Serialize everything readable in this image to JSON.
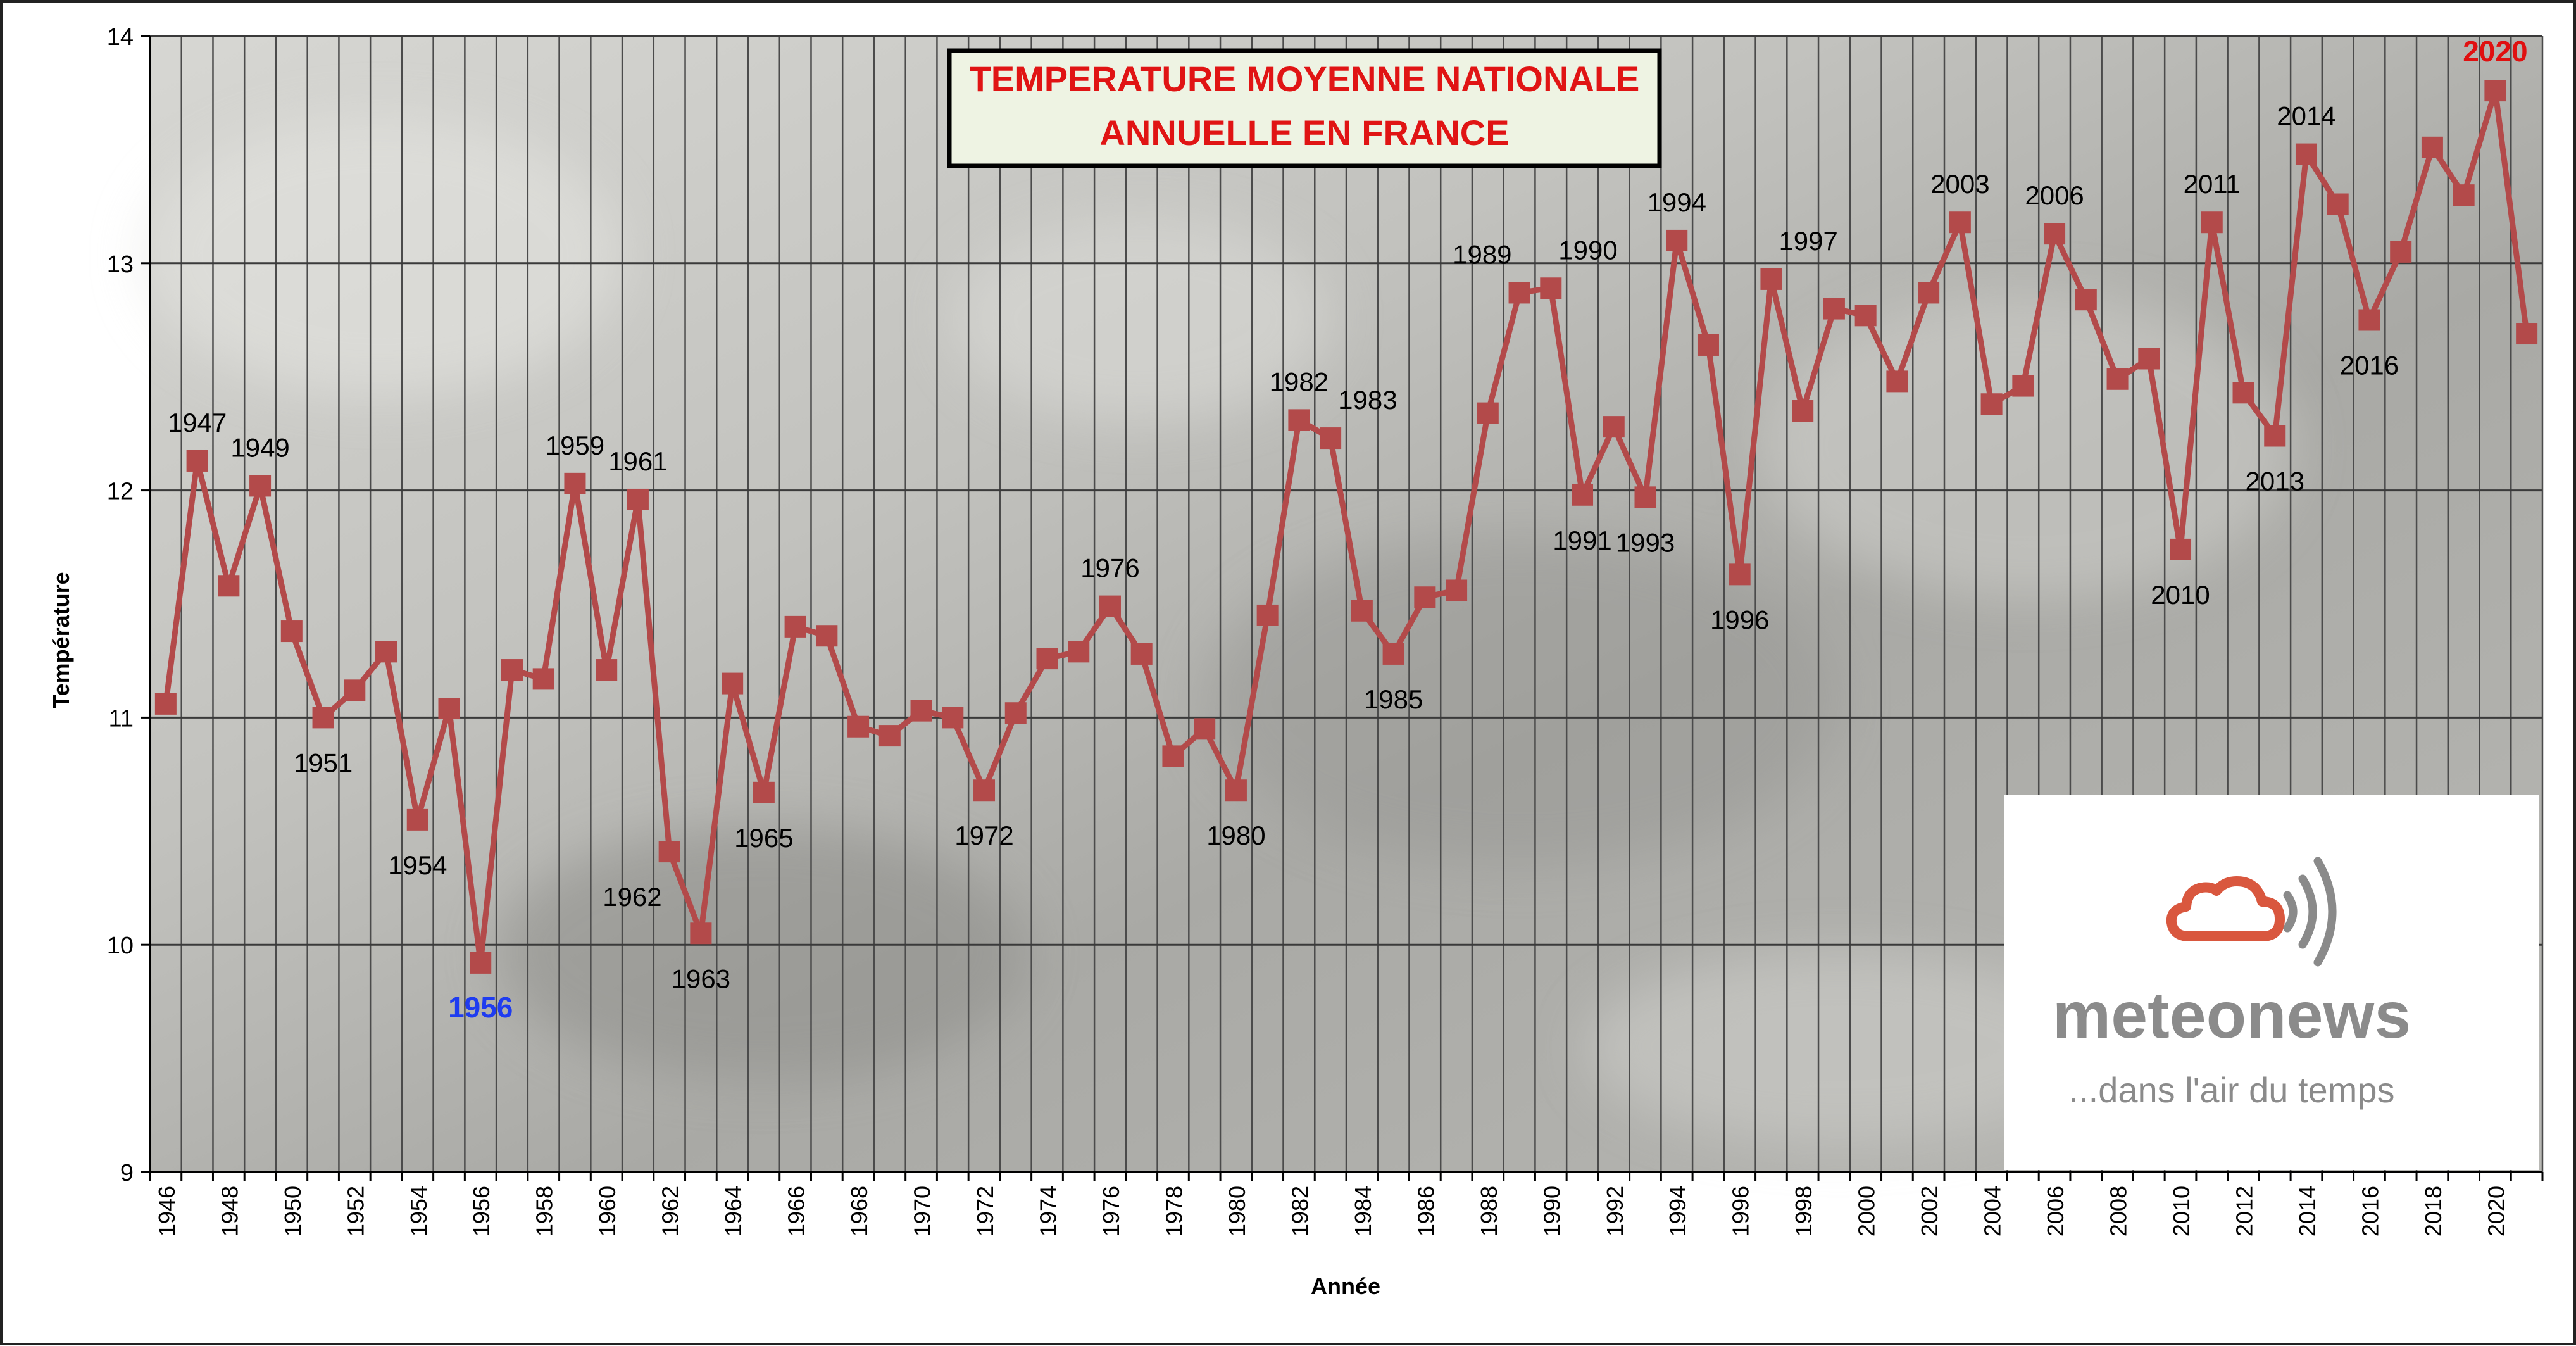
{
  "chart_data": {
    "type": "line",
    "title_lines": [
      "TEMPERATURE MOYENNE NATIONALE",
      "ANNUELLE EN FRANCE"
    ],
    "xlabel": "Année",
    "ylabel": "Température",
    "ylim": [
      9,
      14
    ],
    "xlim": [
      1946,
      2021
    ],
    "y_ticks": [
      9,
      10,
      11,
      12,
      13,
      14
    ],
    "x_tick_labels": [
      "1946",
      "1948",
      "1950",
      "1952",
      "1954",
      "1956",
      "1958",
      "1960",
      "1962",
      "1964",
      "1966",
      "1968",
      "1970",
      "1972",
      "1974",
      "1976",
      "1978",
      "1980",
      "1982",
      "1984",
      "1986",
      "1988",
      "1990",
      "1992",
      "1994",
      "1996",
      "1998",
      "2000",
      "2002",
      "2004",
      "2006",
      "2008",
      "2010",
      "2012",
      "2014",
      "2016",
      "2018",
      "2020"
    ],
    "grid": true,
    "x": [
      1946,
      1947,
      1948,
      1949,
      1950,
      1951,
      1952,
      1953,
      1954,
      1955,
      1956,
      1957,
      1958,
      1959,
      1960,
      1961,
      1962,
      1963,
      1964,
      1965,
      1966,
      1967,
      1968,
      1969,
      1970,
      1971,
      1972,
      1973,
      1974,
      1975,
      1976,
      1977,
      1978,
      1979,
      1980,
      1981,
      1982,
      1983,
      1984,
      1985,
      1986,
      1987,
      1988,
      1989,
      1990,
      1991,
      1992,
      1993,
      1994,
      1995,
      1996,
      1997,
      1998,
      1999,
      2000,
      2001,
      2002,
      2003,
      2004,
      2005,
      2006,
      2007,
      2008,
      2009,
      2010,
      2011,
      2012,
      2013,
      2014,
      2015,
      2016,
      2017,
      2018,
      2019,
      2020,
      2021
    ],
    "y": [
      11.06,
      12.13,
      11.58,
      12.02,
      11.38,
      11.0,
      11.12,
      11.29,
      10.55,
      11.04,
      9.92,
      11.21,
      11.17,
      12.03,
      11.21,
      11.96,
      10.41,
      10.05,
      11.15,
      10.67,
      11.4,
      11.36,
      10.96,
      10.92,
      11.03,
      11.0,
      10.68,
      11.02,
      11.26,
      11.29,
      11.49,
      11.28,
      10.83,
      10.95,
      10.68,
      11.45,
      12.31,
      12.23,
      11.47,
      11.28,
      11.53,
      11.56,
      12.34,
      12.87,
      12.89,
      11.98,
      12.28,
      11.97,
      13.1,
      12.64,
      11.63,
      12.93,
      12.35,
      12.8,
      12.77,
      12.48,
      12.87,
      13.18,
      12.38,
      12.46,
      13.13,
      12.84,
      12.49,
      12.58,
      11.74,
      13.18,
      12.43,
      12.24,
      13.48,
      13.26,
      12.75,
      13.05,
      13.51,
      13.3,
      13.76,
      12.69
    ],
    "annotations": [
      {
        "year": 1947,
        "label": "1947",
        "pos": "above"
      },
      {
        "year": 1949,
        "label": "1949",
        "pos": "above"
      },
      {
        "year": 1951,
        "label": "1951",
        "pos": "below"
      },
      {
        "year": 1954,
        "label": "1954",
        "pos": "below"
      },
      {
        "year": 1956,
        "label": "1956",
        "pos": "below",
        "color": "#1f3cf0",
        "bold": true
      },
      {
        "year": 1959,
        "label": "1959",
        "pos": "above"
      },
      {
        "year": 1961,
        "label": "1961",
        "pos": "above"
      },
      {
        "year": 1962,
        "label": "1962",
        "pos": "below-left"
      },
      {
        "year": 1963,
        "label": "1963",
        "pos": "below"
      },
      {
        "year": 1965,
        "label": "1965",
        "pos": "below"
      },
      {
        "year": 1972,
        "label": "1972",
        "pos": "below"
      },
      {
        "year": 1976,
        "label": "1976",
        "pos": "above"
      },
      {
        "year": 1980,
        "label": "1980",
        "pos": "below"
      },
      {
        "year": 1982,
        "label": "1982",
        "pos": "above"
      },
      {
        "year": 1983,
        "label": "1983",
        "pos": "above-right"
      },
      {
        "year": 1985,
        "label": "1985",
        "pos": "below"
      },
      {
        "year": 1989,
        "label": "1989",
        "pos": "above-left"
      },
      {
        "year": 1990,
        "label": "1990",
        "pos": "above-right"
      },
      {
        "year": 1991,
        "label": "1991",
        "pos": "below"
      },
      {
        "year": 1993,
        "label": "1993",
        "pos": "below"
      },
      {
        "year": 1994,
        "label": "1994",
        "pos": "above"
      },
      {
        "year": 1996,
        "label": "1996",
        "pos": "below"
      },
      {
        "year": 1997,
        "label": "1997",
        "pos": "above-right"
      },
      {
        "year": 2003,
        "label": "2003",
        "pos": "above"
      },
      {
        "year": 2006,
        "label": "2006",
        "pos": "above"
      },
      {
        "year": 2010,
        "label": "2010",
        "pos": "below"
      },
      {
        "year": 2011,
        "label": "2011",
        "pos": "above"
      },
      {
        "year": 2013,
        "label": "2013",
        "pos": "below"
      },
      {
        "year": 2014,
        "label": "2014",
        "pos": "above"
      },
      {
        "year": 2016,
        "label": "2016",
        "pos": "below"
      },
      {
        "year": 2020,
        "label": "2020",
        "pos": "above",
        "color": "#e01010",
        "bold": true
      }
    ],
    "colors": {
      "series": "#b34a4a",
      "title_text": "#e01414",
      "title_box": "#eef3e3",
      "plot_bg": "#b3b3ae",
      "grid": "#4b4b4b"
    }
  },
  "logo": {
    "name": "meteonews",
    "tagline": "...dans l'air du temps",
    "cloud_color": "#d9573e",
    "wave_color": "#8a8a8a",
    "text_color": "#8b8b8b"
  }
}
